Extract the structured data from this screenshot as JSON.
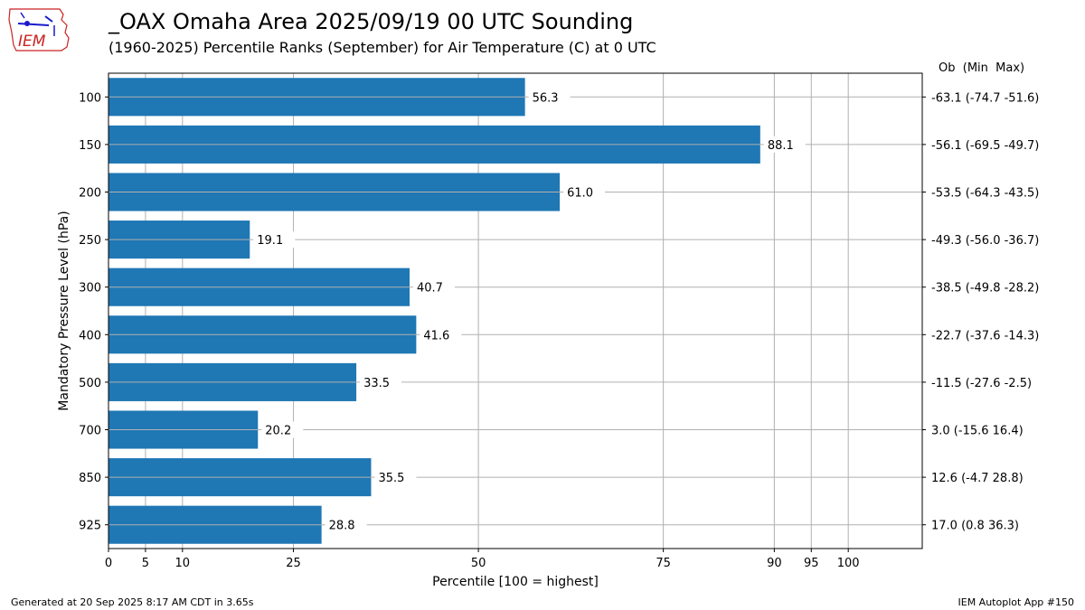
{
  "header": {
    "title": "_OAX Omaha Area  2025/09/19 00 UTC Sounding",
    "subtitle": "(1960-2025) Percentile Ranks (September) for Air Temperature (C) at 0 UTC",
    "right_header": "Ob  (Min  Max)"
  },
  "logo": {
    "text": "IEM",
    "color": "#cc2222"
  },
  "footer": {
    "left": "Generated at 20 Sep 2025 8:17 AM CDT in 3.65s",
    "right": "IEM Autoplot App #150"
  },
  "colors": {
    "bar": "#1f77b4",
    "grid": "#b0b0b0"
  },
  "chart_data": {
    "type": "bar",
    "orientation": "horizontal",
    "xlabel": "Percentile [100 = highest]",
    "ylabel": "Mandatory Pressure Level (hPa)",
    "xlim": [
      0,
      110
    ],
    "xticks": [
      0,
      5,
      10,
      25,
      50,
      75,
      90,
      95,
      100
    ],
    "grid": true,
    "categories": [
      "100",
      "150",
      "200",
      "250",
      "300",
      "400",
      "500",
      "700",
      "850",
      "925"
    ],
    "values": [
      56.3,
      88.1,
      61.0,
      19.1,
      40.7,
      41.6,
      33.5,
      20.2,
      35.5,
      28.8
    ],
    "value_labels": [
      "56.3",
      "88.1",
      "61.0",
      "19.1",
      "40.7",
      "41.6",
      "33.5",
      "20.2",
      "35.5",
      "28.8"
    ],
    "right_labels": [
      "-63.1 (-74.7 -51.6)",
      "-56.1 (-69.5 -49.7)",
      "-53.5 (-64.3 -43.5)",
      "-49.3 (-56.0 -36.7)",
      "-38.5 (-49.8 -28.2)",
      "-22.7 (-37.6 -14.3)",
      "-11.5 (-27.6 -2.5)",
      "3.0 (-15.6 16.4)",
      "12.6 (-4.7 28.8)",
      "17.0 (0.8 36.3)"
    ]
  }
}
